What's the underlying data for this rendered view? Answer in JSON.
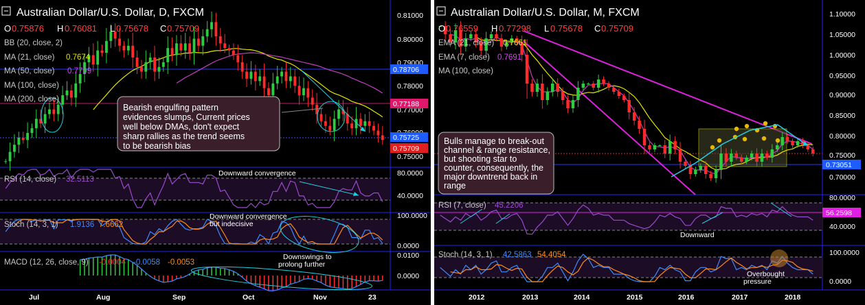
{
  "chart_data": [
    {
      "type": "candlestick",
      "title": "Australian Dollar/U.S. Dollar, D, FXCM",
      "ohlc": {
        "O": "0.75876",
        "H": "0.76081",
        "L": "0.75678",
        "C": "0.75709"
      },
      "indicators": [
        {
          "label": "BB (20, close, 2)",
          "value": ""
        },
        {
          "label": "MA (21, close)",
          "value": "0.7674",
          "color": "#e6e600"
        },
        {
          "label": "MA (50, close)",
          "value": "0.7799",
          "color": "#e040fb"
        },
        {
          "label": "MA (100, close)",
          "value": ""
        },
        {
          "label": "MA (200, close)",
          "value": ""
        }
      ],
      "y_ticks": [
        "0.81000",
        "0.80000",
        "0.79000",
        "0.78000",
        "0.77000",
        "0.76000",
        "0.75000"
      ],
      "price_tags": [
        {
          "text": "0.78706",
          "color": "#1e5cff"
        },
        {
          "text": "0.77188",
          "color": "#e0186c"
        },
        {
          "text": "0.75725",
          "color": "#1e5cff"
        },
        {
          "text": "0.75709",
          "color": "#e02020"
        }
      ],
      "x_ticks": [
        "Jul",
        "Aug",
        "Sep",
        "Oct",
        "Nov",
        "23"
      ],
      "close_series": [
        0.748,
        0.752,
        0.755,
        0.758,
        0.757,
        0.76,
        0.762,
        0.766,
        0.764,
        0.768,
        0.77,
        0.768,
        0.772,
        0.776,
        0.778,
        0.775,
        0.781,
        0.785,
        0.79,
        0.793,
        0.789,
        0.795,
        0.794,
        0.799,
        0.803,
        0.8,
        0.797,
        0.795,
        0.797,
        0.792,
        0.788,
        0.786,
        0.79,
        0.792,
        0.786,
        0.788,
        0.79,
        0.796,
        0.793,
        0.798,
        0.795,
        0.798,
        0.794,
        0.8,
        0.797,
        0.801,
        0.804,
        0.807,
        0.801,
        0.798,
        0.796,
        0.795,
        0.793,
        0.79,
        0.786,
        0.783,
        0.786,
        0.782,
        0.784,
        0.779,
        0.776,
        0.781,
        0.784,
        0.786,
        0.782,
        0.784,
        0.78,
        0.776,
        0.779,
        0.775,
        0.772,
        0.768,
        0.765,
        0.763,
        0.761,
        0.766,
        0.77,
        0.768,
        0.764,
        0.762,
        0.766,
        0.763,
        0.765,
        0.763,
        0.761,
        0.759,
        0.757
      ],
      "annotation": "Bearish engulfing pattern evidences slumps, Current prices well below DMAs, don't expect sharp rallies as the trend seems to be bearish bias",
      "annotation_lines": [
        "Bearish engulfing pattern",
        "evidences slumps, Current prices",
        "well below DMAs, don't expect",
        "sharp rallies as the trend seems",
        "to be bearish bias"
      ],
      "rsi": {
        "label": "RSI (14, close)",
        "value": "32.5113",
        "ticks": [
          "80.0000",
          "40.0000"
        ],
        "note": "Downward convergence"
      },
      "stoch": {
        "label": "Stoch (14, 3, 1)",
        "k": "1.9136",
        "d": "7.6662",
        "ticks": [
          "100.0000",
          "0.0000"
        ],
        "note_lines": [
          "Downward convergence",
          "but indecisive"
        ]
      },
      "macd": {
        "label": "MACD (12, 26, close, 9)",
        "values": [
          "-0.0004",
          "-0.0058",
          "-0.0053"
        ],
        "ticks": [
          "0.0100",
          "0.0000"
        ],
        "note_lines": [
          "Downswings to",
          "prolong further"
        ]
      },
      "colors": {
        "up": "#2ecc40",
        "down": "#ff2a2a",
        "ma21": "#e6e600",
        "ma50": "#c040c0",
        "rsi": "#9c4bd0",
        "cyan": "#20d0e0"
      }
    },
    {
      "type": "candlestick",
      "title": "Australian Dollar/U.S. Dollar, M, FXCM",
      "ohlc": {
        "O": "0.76559",
        "H": "0.77298",
        "L": "0.75678",
        "C": "0.75709"
      },
      "indicators": [
        {
          "label": "EMA (21, close)",
          "value": "0.7661",
          "color": "#e6e600"
        },
        {
          "label": "EMA (7, close)",
          "value": "0.7691",
          "color": "#e040fb"
        },
        {
          "label": "MA (100, close)",
          "value": ""
        }
      ],
      "y_ticks": [
        "1.10000",
        "1.05000",
        "1.00000",
        "0.95000",
        "0.90000",
        "0.85000",
        "0.80000",
        "0.75000",
        "0.70000"
      ],
      "price_tags": [
        {
          "text": "0.73051",
          "color": "#1e5cff"
        }
      ],
      "x_ticks": [
        "2012",
        "2013",
        "2014",
        "2015",
        "2016",
        "2017",
        "2018"
      ],
      "close_series": [
        1.07,
        1.05,
        1.03,
        1.06,
        1.02,
        1.04,
        1.05,
        1.03,
        1.01,
        1.04,
        1.05,
        1.04,
        1.02,
        1.03,
        1.04,
        1.03,
        1.0,
        0.93,
        0.91,
        0.93,
        0.89,
        0.91,
        0.93,
        0.91,
        0.89,
        0.87,
        0.89,
        0.92,
        0.93,
        0.93,
        0.92,
        0.94,
        0.93,
        0.92,
        0.91,
        0.9,
        0.89,
        0.86,
        0.84,
        0.82,
        0.78,
        0.77,
        0.78,
        0.78,
        0.76,
        0.79,
        0.77,
        0.74,
        0.73,
        0.71,
        0.72,
        0.73,
        0.71,
        0.7,
        0.72,
        0.76,
        0.74,
        0.76,
        0.75,
        0.74,
        0.75,
        0.76,
        0.74,
        0.76,
        0.75,
        0.77,
        0.78,
        0.8,
        0.79,
        0.78,
        0.79,
        0.78,
        0.77,
        0.76
      ],
      "annotation": "Bulls manage to break-out channel & range resistance, but shooting star to counter, consequently, the major downtrend back in range",
      "annotation_lines": [
        "Bulls manage to break-out",
        "channel & range resistance,",
        "but shooting star to",
        "counter, consequently, the",
        "major downtrend back in",
        "range"
      ],
      "rsi": {
        "label": "RSI (7, close)",
        "value": "45.2206",
        "ticks": [
          "80.0000",
          "40.0000"
        ],
        "tag": "56.2598",
        "note": "Downward"
      },
      "stoch": {
        "label": "Stoch (14, 3, 1)",
        "k": "42.5863",
        "d": "54.4054",
        "ticks": [
          "100.0000",
          "0.0000"
        ],
        "note_lines": [
          "Overbought",
          "pressure"
        ]
      },
      "colors": {
        "up": "#2ecc40",
        "down": "#ff2a2a",
        "ema21": "#e6e600",
        "ema7": "#c040c0",
        "channel": "#e020e0",
        "rsi": "#9c4bd0",
        "cyan": "#20d0e0"
      }
    }
  ]
}
